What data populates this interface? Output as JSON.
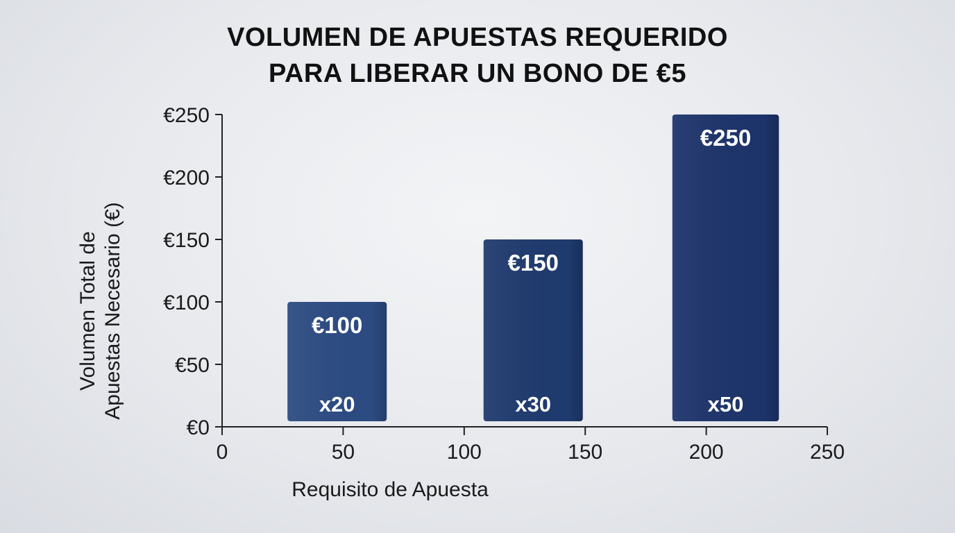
{
  "chart_data": {
    "type": "bar",
    "title_lines": [
      "VOLUMEN DE APUESTAS REQUERIDO",
      "PARA LIBERAR UN BONO DE €5"
    ],
    "xlabel": "Requisito de Apuesta",
    "ylabel_lines": [
      "Volumen Total de",
      "Apuestas Necesario (€)"
    ],
    "xlim": [
      0,
      250
    ],
    "ylim": [
      0,
      250
    ],
    "x_ticks": [
      "0",
      "50",
      "100",
      "150",
      "200",
      "250"
    ],
    "y_ticks": [
      "€0",
      "€50",
      "€100",
      "€150",
      "€200",
      "€250"
    ],
    "grid": false,
    "bars": [
      {
        "x_start": 27,
        "x_end": 68,
        "value": 100,
        "value_label": "€100",
        "inner_label": "x20"
      },
      {
        "x_start": 108,
        "x_end": 149,
        "value": 150,
        "value_label": "€150",
        "inner_label": "x30"
      },
      {
        "x_start": 186,
        "x_end": 230,
        "value": 250,
        "value_label": "€250",
        "inner_label": "x50"
      }
    ],
    "colors": {
      "bar_fill_1": "#2c4b82",
      "bar_fill_2": "#1f3a6e",
      "bar_fill_3": "#1d346b",
      "axis": "#222222"
    }
  }
}
